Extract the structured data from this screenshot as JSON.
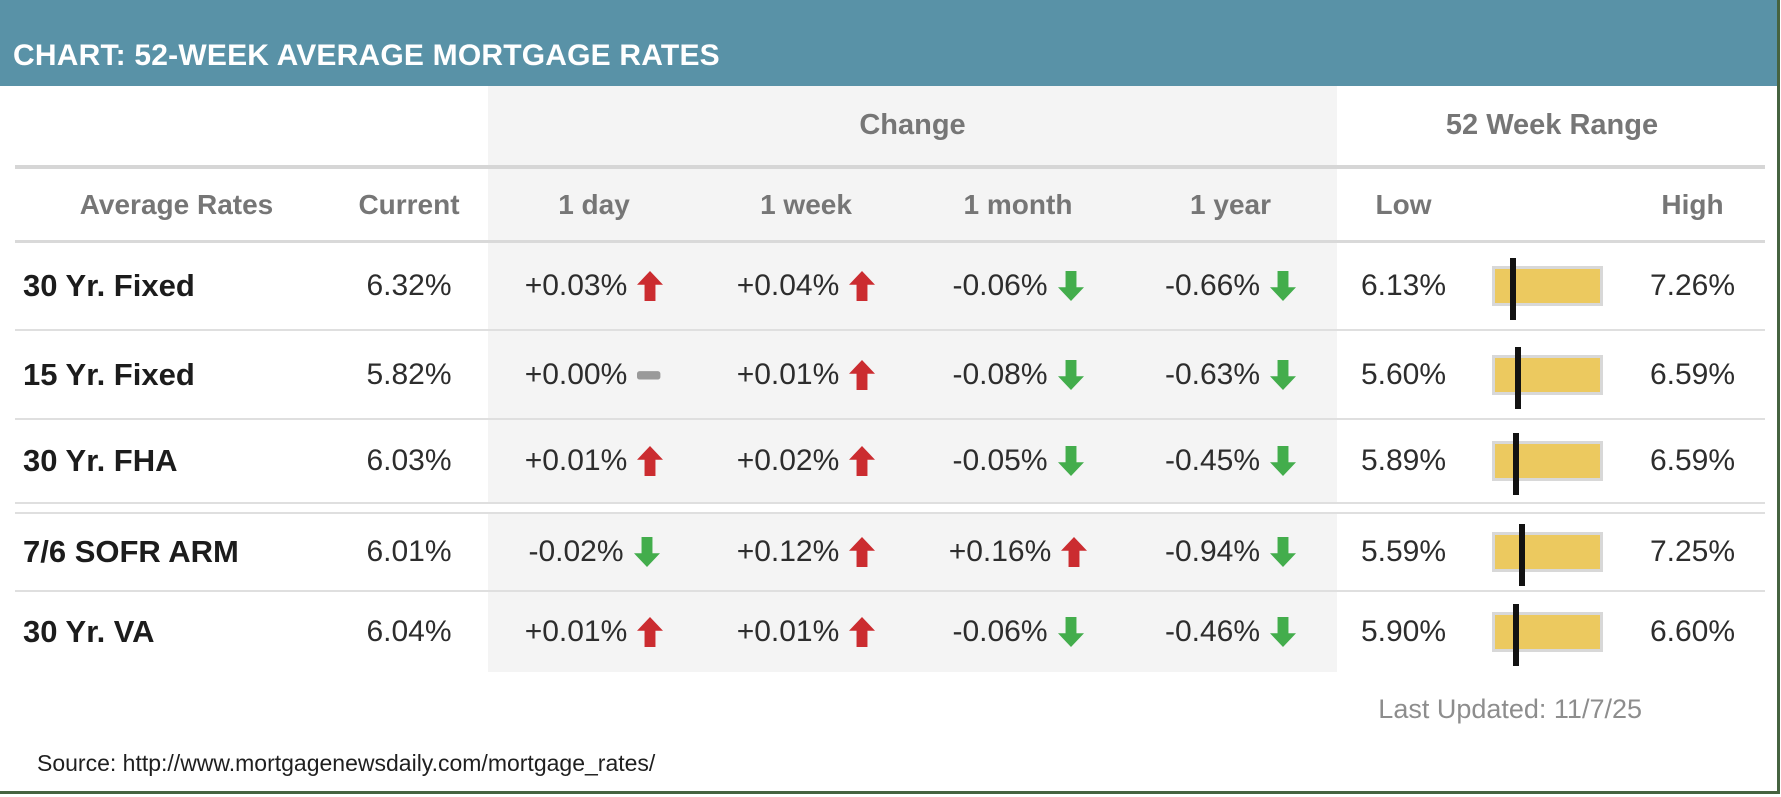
{
  "header": {
    "title": "CHART: 52-WEEK AVERAGE MORTGAGE RATES"
  },
  "table": {
    "group_headers": {
      "change": "Change",
      "range": "52 Week Range"
    },
    "columns": {
      "label": "Average Rates",
      "current": "Current",
      "day": "1 day",
      "week": "1 week",
      "month": "1 month",
      "year": "1 year",
      "low": "Low",
      "high": "High"
    },
    "rows": [
      {
        "label": "30 Yr. Fixed",
        "current": "6.32%",
        "day": {
          "text": "+0.03%",
          "dir": "up"
        },
        "week": {
          "text": "+0.04%",
          "dir": "up"
        },
        "month": {
          "text": "-0.06%",
          "dir": "down"
        },
        "year": {
          "text": "-0.66%",
          "dir": "down"
        },
        "low": "6.13%",
        "high": "7.26%"
      },
      {
        "label": "15 Yr. Fixed",
        "current": "5.82%",
        "day": {
          "text": "+0.00%",
          "dir": "flat"
        },
        "week": {
          "text": "+0.01%",
          "dir": "up"
        },
        "month": {
          "text": "-0.08%",
          "dir": "down"
        },
        "year": {
          "text": "-0.63%",
          "dir": "down"
        },
        "low": "5.60%",
        "high": "6.59%"
      },
      {
        "label": "30 Yr. FHA",
        "current": "6.03%",
        "day": {
          "text": "+0.01%",
          "dir": "up"
        },
        "week": {
          "text": "+0.02%",
          "dir": "up"
        },
        "month": {
          "text": "-0.05%",
          "dir": "down"
        },
        "year": {
          "text": "-0.45%",
          "dir": "down"
        },
        "low": "5.89%",
        "high": "6.59%"
      },
      {
        "label": "7/6 SOFR ARM",
        "current": "6.01%",
        "day": {
          "text": "-0.02%",
          "dir": "down"
        },
        "week": {
          "text": "+0.12%",
          "dir": "up"
        },
        "month": {
          "text": "+0.16%",
          "dir": "up"
        },
        "year": {
          "text": "-0.94%",
          "dir": "down"
        },
        "low": "5.59%",
        "high": "7.25%"
      },
      {
        "label": "30 Yr. VA",
        "current": "6.04%",
        "day": {
          "text": "+0.01%",
          "dir": "up"
        },
        "week": {
          "text": "+0.01%",
          "dir": "up"
        },
        "month": {
          "text": "-0.06%",
          "dir": "down"
        },
        "year": {
          "text": "-0.46%",
          "dir": "down"
        },
        "low": "5.90%",
        "high": "6.60%"
      }
    ]
  },
  "footer": {
    "last_updated": "Last Updated: 11/7/25",
    "source": "Source: http://www.mortgagenewsdaily.com/mortgage_rates/"
  },
  "colors": {
    "header_teal": "#5992a7",
    "up_red": "#cb2c30",
    "down_green": "#43ad4c",
    "flat_gray": "#9a9a9a",
    "bar_yellow": "#ecc95f",
    "bar_border": "#d8d8d8",
    "marker_black": "#121212",
    "frame_green": "#466340"
  },
  "chart_data": {
    "type": "table",
    "title": "CHART: 52-WEEK AVERAGE MORTGAGE RATES",
    "column_groups": [
      "Change",
      "52 Week Range"
    ],
    "columns": [
      "Average Rates",
      "Current",
      "1 day",
      "1 week",
      "1 month",
      "1 year",
      "Low",
      "High"
    ],
    "rows": [
      [
        "30 Yr. Fixed",
        6.32,
        0.03,
        0.04,
        -0.06,
        -0.66,
        6.13,
        7.26
      ],
      [
        "15 Yr. Fixed",
        5.82,
        0.0,
        0.01,
        -0.08,
        -0.63,
        5.6,
        6.59
      ],
      [
        "30 Yr. FHA",
        6.03,
        0.01,
        0.02,
        -0.05,
        -0.45,
        5.89,
        6.59
      ],
      [
        "7/6 SOFR ARM",
        6.01,
        -0.02,
        0.12,
        0.16,
        -0.94,
        5.59,
        7.25
      ],
      [
        "30 Yr. VA",
        6.04,
        0.01,
        0.01,
        -0.06,
        -0.46,
        5.9,
        6.6
      ]
    ],
    "units": "percent",
    "range_marker": "black vertical line on yellow bar at current rate position between 52-week low and high",
    "last_updated": "11/7/25",
    "source": "http://www.mortgagenewsdaily.com/mortgage_rates/"
  }
}
